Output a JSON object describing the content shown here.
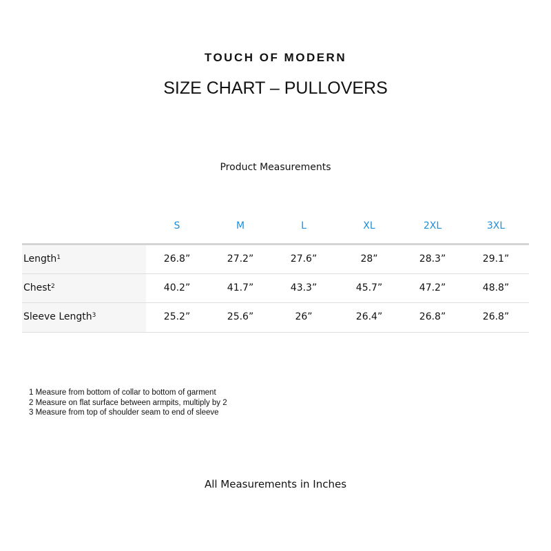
{
  "brand": "TOUCH OF MODERN",
  "title": "SIZE CHART – PULLOVERS",
  "subtitle": "Product Measurements",
  "table": {
    "sizes": [
      "S",
      "M",
      "L",
      "XL",
      "2XL",
      "3XL"
    ],
    "header_color": "#1a8fe0",
    "rows": [
      {
        "label": "Length",
        "sup": "1",
        "values": [
          "26.8”",
          "27.2”",
          "27.6”",
          "28”",
          "28.3”",
          "29.1”"
        ]
      },
      {
        "label": "Chest",
        "sup": "2",
        "values": [
          "40.2”",
          "41.7”",
          "43.3”",
          "45.7”",
          "47.2”",
          "48.8”"
        ]
      },
      {
        "label": "Sleeve Length",
        "sup": "3",
        "values": [
          "25.2”",
          "25.6”",
          "26”",
          "26.4”",
          "26.8”",
          "26.8”"
        ]
      }
    ]
  },
  "notes": [
    "1 Measure from bottom of collar to bottom of garment",
    "2 Measure on flat surface between armpits, multiply by 2",
    "3 Measure from top of shoulder seam to end of sleeve"
  ],
  "footer": "All Measurements in Inches"
}
